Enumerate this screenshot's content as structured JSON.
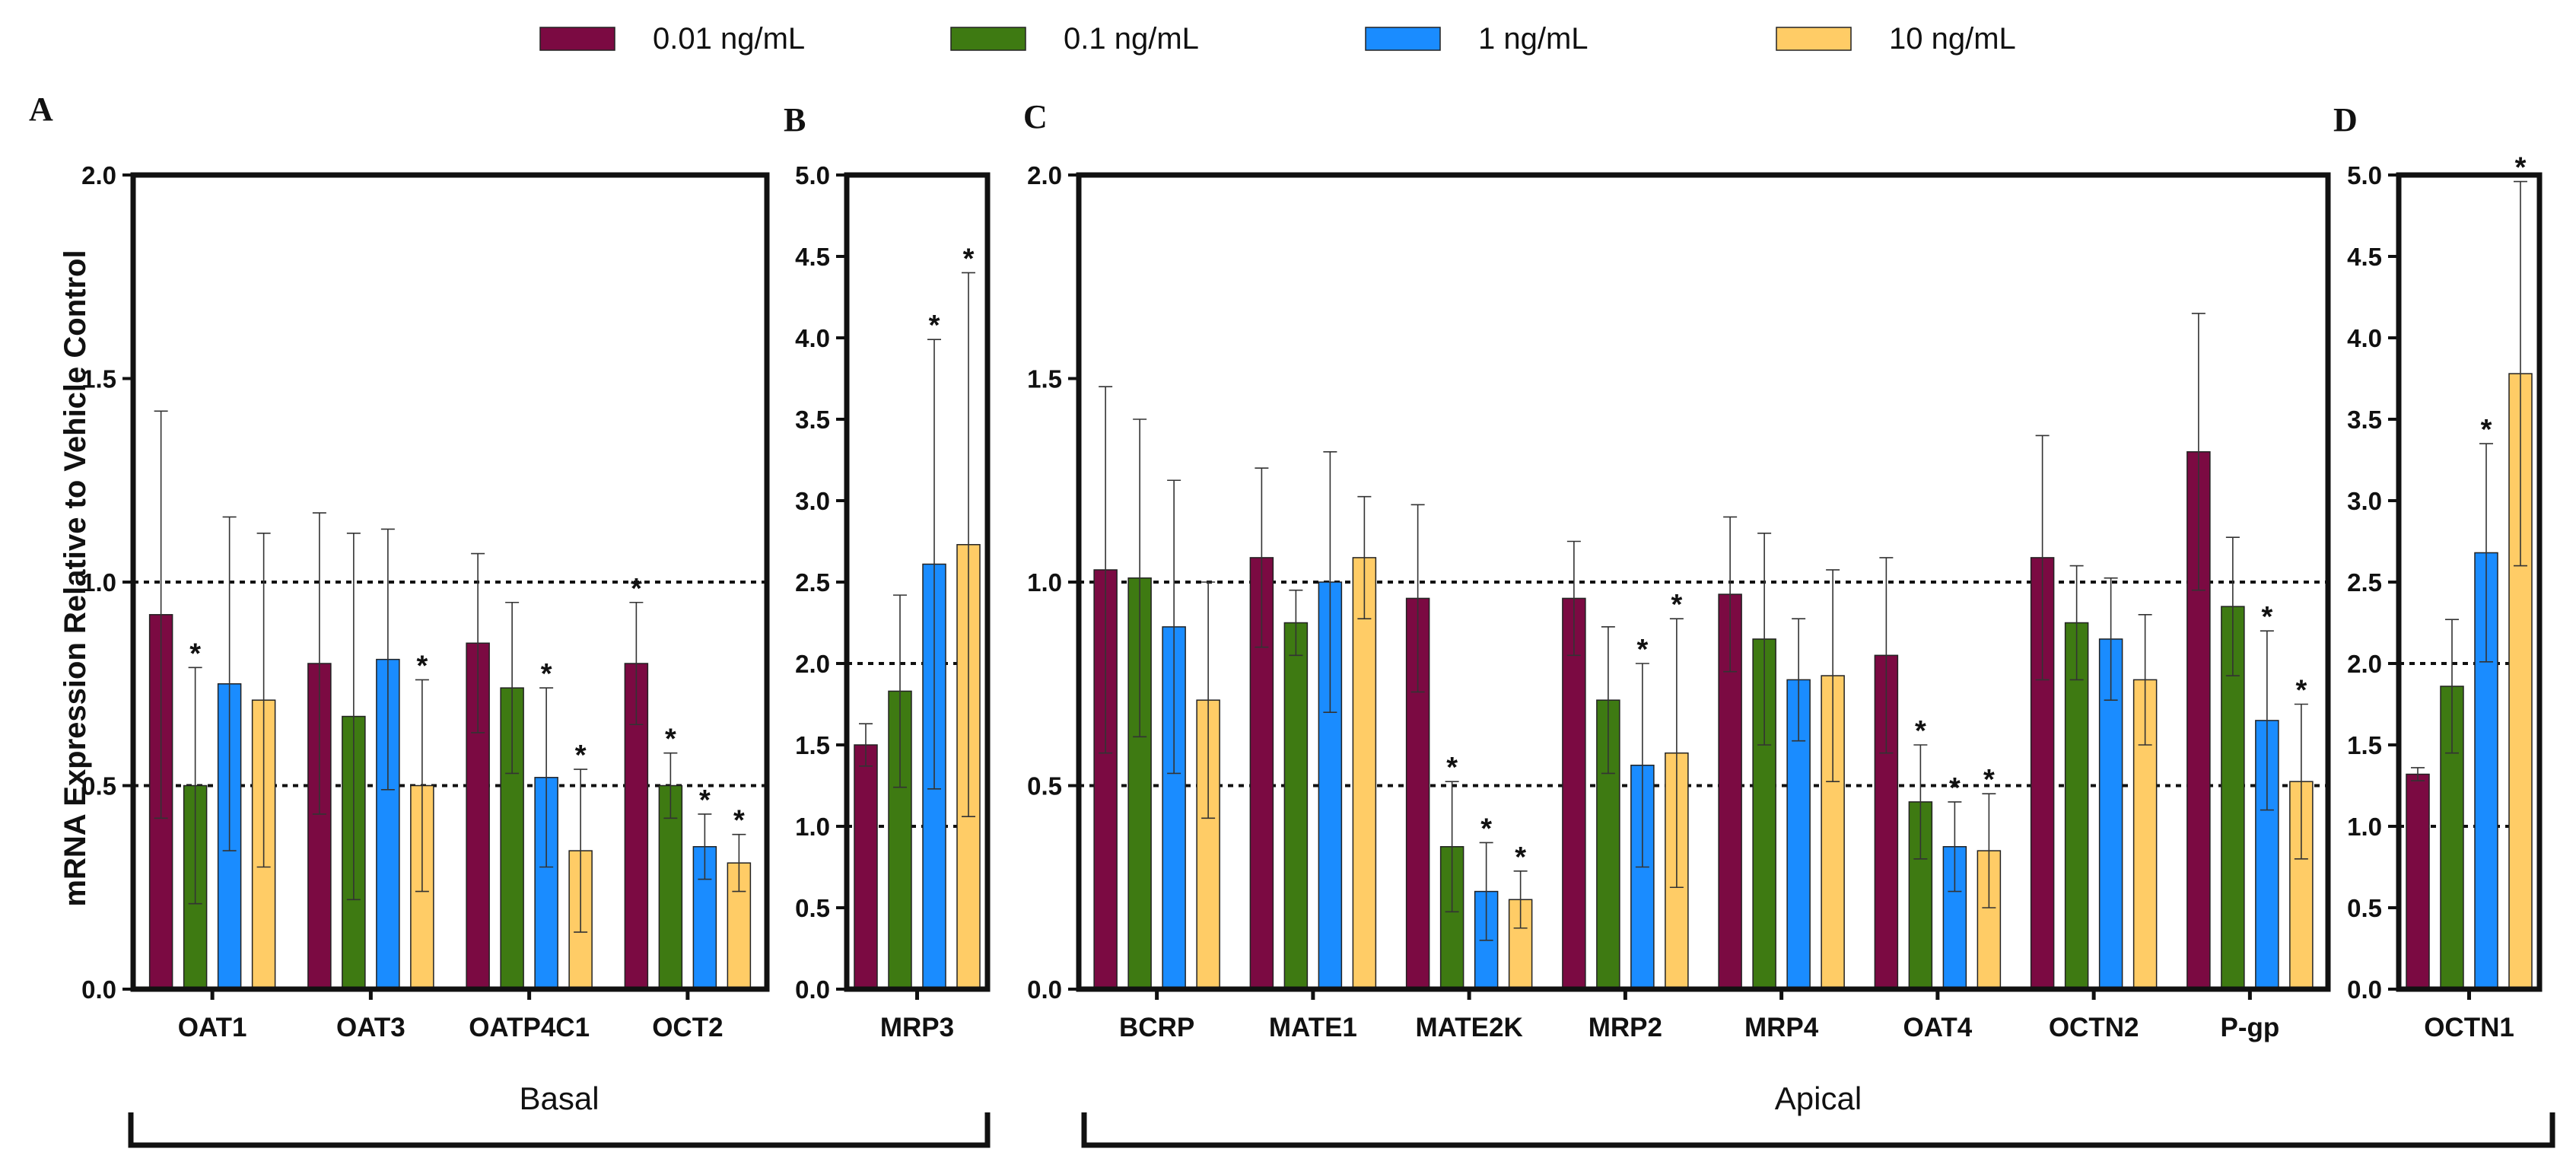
{
  "chart_data": {
    "type": "bar",
    "ylabel": "mRNA Expression Relative to Vehicle Control",
    "legend": [
      {
        "name": "0.01 ng/mL",
        "color": "#7b0a42"
      },
      {
        "name": "0.1 ng/mL",
        "color": "#3e7a12"
      },
      {
        "name": "1 ng/mL",
        "color": "#1a8cff"
      },
      {
        "name": "10 ng/mL",
        "color": "#ffcc66"
      }
    ],
    "groups": [
      {
        "label": "Basal",
        "panels": [
          "A",
          "B"
        ]
      },
      {
        "label": "Apical",
        "panels": [
          "C",
          "D"
        ]
      }
    ],
    "panels": [
      {
        "letter": "A",
        "ylim": [
          0,
          2.0
        ],
        "yticks": [
          "0.0",
          "0.5",
          "1.0",
          "1.5",
          "2.0"
        ],
        "reference_lines": [
          0.5,
          1.0
        ],
        "categories": [
          {
            "name": "OAT1",
            "values": [
              0.92,
              0.5,
              0.75,
              0.71
            ],
            "errors": [
              0.5,
              0.29,
              0.41,
              0.41
            ],
            "sig": [
              false,
              true,
              false,
              false
            ]
          },
          {
            "name": "OAT3",
            "values": [
              0.8,
              0.67,
              0.81,
              0.5
            ],
            "errors": [
              0.37,
              0.45,
              0.32,
              0.26
            ],
            "sig": [
              false,
              false,
              false,
              true
            ]
          },
          {
            "name": "OATP4C1",
            "values": [
              0.85,
              0.74,
              0.52,
              0.34
            ],
            "errors": [
              0.22,
              0.21,
              0.22,
              0.2
            ],
            "sig": [
              false,
              false,
              true,
              true
            ]
          },
          {
            "name": "OCT2",
            "values": [
              0.8,
              0.5,
              0.35,
              0.31
            ],
            "errors": [
              0.15,
              0.08,
              0.08,
              0.07
            ],
            "sig": [
              true,
              true,
              true,
              true
            ]
          }
        ]
      },
      {
        "letter": "B",
        "ylim": [
          0,
          5.0
        ],
        "yticks": [
          "0.0",
          "0.5",
          "1.0",
          "1.5",
          "2.0",
          "2.5",
          "3.0",
          "3.5",
          "4.0",
          "4.5",
          "5.0"
        ],
        "reference_lines": [
          1.0,
          2.0
        ],
        "categories": [
          {
            "name": "MRP3",
            "values": [
              1.5,
              1.83,
              2.61,
              2.73
            ],
            "errors": [
              0.13,
              0.59,
              1.38,
              1.67
            ],
            "sig": [
              false,
              false,
              true,
              true
            ]
          }
        ]
      },
      {
        "letter": "C",
        "ylim": [
          0,
          2.0
        ],
        "yticks": [
          "0.0",
          "0.5",
          "1.0",
          "1.5",
          "2.0"
        ],
        "reference_lines": [
          0.5,
          1.0
        ],
        "categories": [
          {
            "name": "BCRP",
            "values": [
              1.03,
              1.01,
              0.89,
              0.71
            ],
            "errors": [
              0.45,
              0.39,
              0.36,
              0.29
            ],
            "sig": [
              false,
              false,
              false,
              false
            ]
          },
          {
            "name": "MATE1",
            "values": [
              1.06,
              0.9,
              1.0,
              1.06
            ],
            "errors": [
              0.22,
              0.08,
              0.32,
              0.15
            ],
            "sig": [
              false,
              false,
              false,
              false
            ]
          },
          {
            "name": "MATE2K",
            "values": [
              0.96,
              0.35,
              0.24,
              0.22
            ],
            "errors": [
              0.23,
              0.16,
              0.12,
              0.07
            ],
            "sig": [
              false,
              true,
              true,
              true
            ]
          },
          {
            "name": "MRP2",
            "values": [
              0.96,
              0.71,
              0.55,
              0.58
            ],
            "errors": [
              0.14,
              0.18,
              0.25,
              0.33
            ],
            "sig": [
              false,
              false,
              true,
              true
            ]
          },
          {
            "name": "MRP4",
            "values": [
              0.97,
              0.86,
              0.76,
              0.77
            ],
            "errors": [
              0.19,
              0.26,
              0.15,
              0.26
            ],
            "sig": [
              false,
              false,
              false,
              false
            ]
          },
          {
            "name": "OAT4",
            "values": [
              0.82,
              0.46,
              0.35,
              0.34
            ],
            "errors": [
              0.24,
              0.14,
              0.11,
              0.14
            ],
            "sig": [
              false,
              true,
              true,
              true
            ]
          },
          {
            "name": "OCTN2",
            "values": [
              1.06,
              0.9,
              0.86,
              0.76
            ],
            "errors": [
              0.3,
              0.14,
              0.15,
              0.16
            ],
            "sig": [
              false,
              false,
              false,
              false
            ]
          },
          {
            "name": "P-gp",
            "values": [
              1.32,
              0.94,
              0.66,
              0.51
            ],
            "errors": [
              0.34,
              0.17,
              0.22,
              0.19
            ],
            "sig": [
              false,
              false,
              true,
              true
            ]
          }
        ]
      },
      {
        "letter": "D",
        "ylim": [
          0,
          5.0
        ],
        "yticks": [
          "0.0",
          "0.5",
          "1.0",
          "1.5",
          "2.0",
          "2.5",
          "3.0",
          "3.5",
          "4.0",
          "4.5",
          "5.0"
        ],
        "reference_lines": [
          1.0,
          2.0
        ],
        "categories": [
          {
            "name": "OCTN1",
            "values": [
              1.32,
              1.86,
              2.68,
              3.78
            ],
            "errors": [
              0.04,
              0.41,
              0.67,
              1.18
            ],
            "sig": [
              false,
              false,
              true,
              true
            ]
          }
        ]
      }
    ]
  }
}
